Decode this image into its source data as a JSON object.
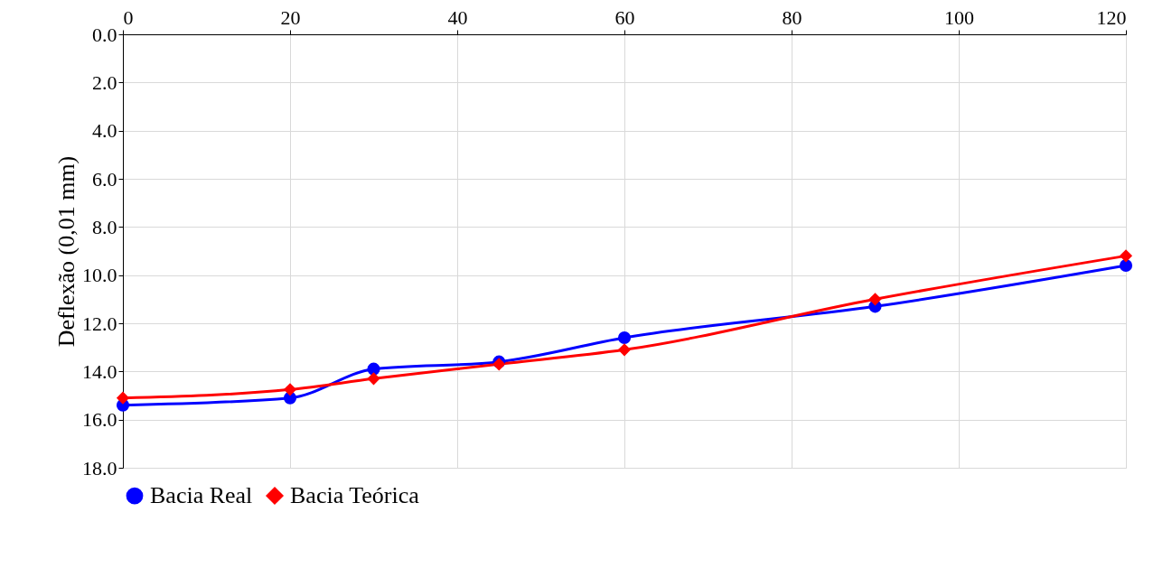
{
  "chart_data": {
    "type": "line",
    "ylabel": "Deflexão (0,01 mm)",
    "xlim": [
      0,
      120
    ],
    "xticks": [
      0,
      20,
      40,
      60,
      80,
      100,
      120
    ],
    "ylim": [
      18,
      0
    ],
    "yticks": [
      {
        "value": 0,
        "label": "0.0"
      },
      {
        "value": 2,
        "label": "2.0"
      },
      {
        "value": 4,
        "label": "4.0"
      },
      {
        "value": 6,
        "label": "6.0"
      },
      {
        "value": 8,
        "label": "8.0"
      },
      {
        "value": 10,
        "label": "10.0"
      },
      {
        "value": 12,
        "label": "12.0"
      },
      {
        "value": 14,
        "label": "14.0"
      },
      {
        "value": 16,
        "label": "16.0"
      },
      {
        "value": 18,
        "label": "18.0"
      }
    ],
    "x": [
      0,
      20,
      30,
      45,
      60,
      90,
      120
    ],
    "series": [
      {
        "name": "Bacia Real",
        "color": "#0000ff",
        "marker": "circle",
        "values": [
          15.4,
          15.1,
          13.9,
          13.6,
          12.6,
          11.3,
          9.6
        ]
      },
      {
        "name": "Bacia Teórica",
        "color": "#ff0000",
        "marker": "diamond",
        "values": [
          15.1,
          14.75,
          14.3,
          13.7,
          13.1,
          11.0,
          9.2
        ]
      }
    ],
    "grid": true,
    "legend": "bottom",
    "line_style": "solid"
  }
}
